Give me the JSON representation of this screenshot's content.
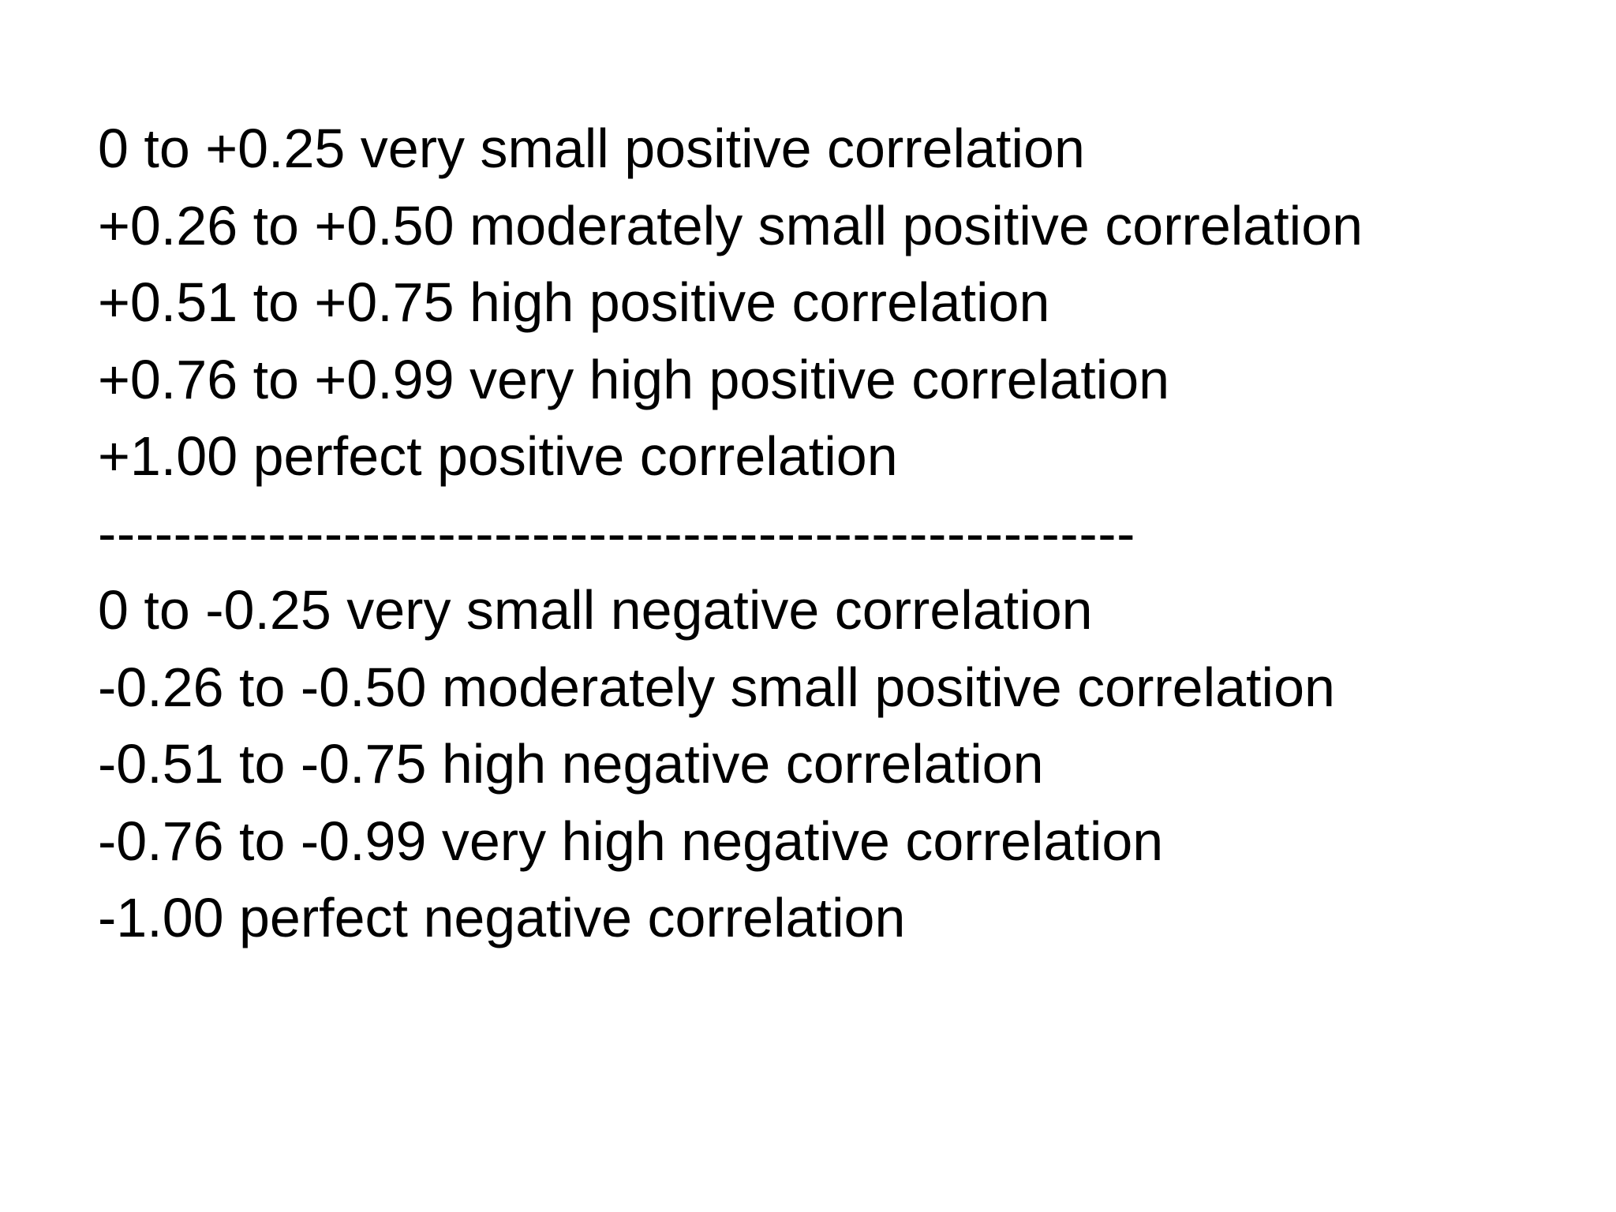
{
  "positive": [
    "0 to +0.25 very small positive correlation",
    "+0.26 to +0.50 moderately small positive correlation",
    "+0.51 to +0.75 high positive correlation",
    "+0.76 to +0.99 very high positive correlation",
    "+1.00 perfect positive correlation"
  ],
  "divider": "-------------------------------------------------------",
  "negative": [
    "0 to -0.25 very small negative correlation",
    "-0.26 to -0.50 moderately small positive correlation",
    "-0.51 to -0.75 high negative correlation",
    "-0.76 to -0.99 very high negative correlation",
    "-1.00 perfect negative correlation"
  ]
}
